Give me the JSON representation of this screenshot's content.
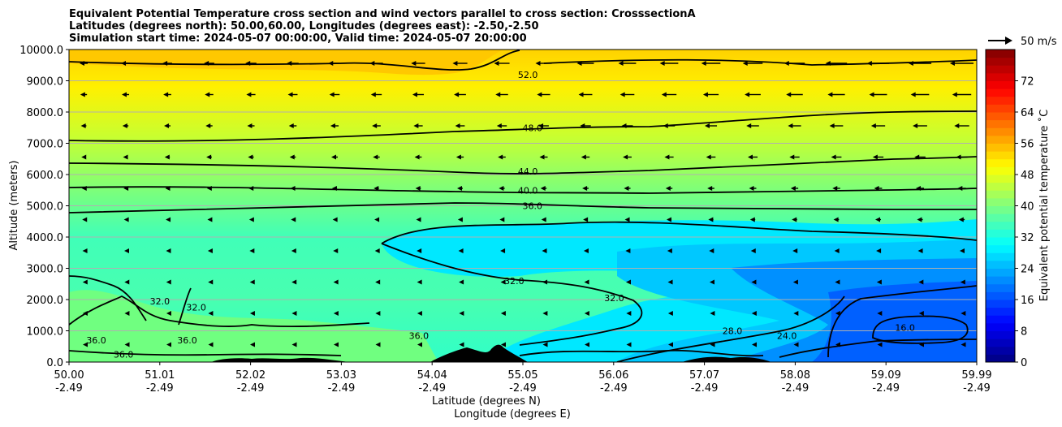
{
  "chart_data": {
    "type": "contourf",
    "title_lines": [
      "Equivalent Potential Temperature cross section and wind vectors parallel to cross section: CrosssectionA",
      "Latitudes (degrees north): 50.00,60.00, Longitudes (degrees east): -2.50,-2.50",
      "Simulation start time: 2024-05-07 00:00:00, Valid time: 2024-05-07 20:00:00"
    ],
    "xlabel_lat": "Latitude (degrees N)",
    "xlabel_lon": "Longitude (degrees E)",
    "ylabel": "Altitude (meters)",
    "x_ticks_lat": [
      "50.00",
      "51.01",
      "52.02",
      "53.03",
      "54.04",
      "55.05",
      "56.06",
      "57.07",
      "58.08",
      "59.09",
      "59.99"
    ],
    "x_ticks_lon": [
      "-2.49",
      "-2.49",
      "-2.49",
      "-2.49",
      "-2.49",
      "-2.49",
      "-2.49",
      "-2.49",
      "-2.49",
      "-2.49",
      "-2.49"
    ],
    "xlim": [
      50.0,
      59.99
    ],
    "y_ticks": [
      "0.0",
      "1000.0",
      "2000.0",
      "3000.0",
      "4000.0",
      "5000.0",
      "6000.0",
      "7000.0",
      "8000.0",
      "9000.0",
      "10000.0"
    ],
    "ylim": [
      0,
      10000
    ],
    "grid_y": true,
    "colorbar": {
      "label": "Equivalent potential temperature ˚C",
      "ticks": [
        "0",
        "8",
        "16",
        "24",
        "32",
        "40",
        "48",
        "56",
        "64",
        "72"
      ],
      "range": [
        0,
        80
      ],
      "colormap": "jet"
    },
    "quiver_key": "50 m/s",
    "contour_labels": [
      {
        "text": "52.0",
        "lat": 55.05,
        "alt": 9200
      },
      {
        "text": "48.0",
        "lat": 55.1,
        "alt": 7500
      },
      {
        "text": "44.0",
        "lat": 55.05,
        "alt": 6100
      },
      {
        "text": "40.0",
        "lat": 55.05,
        "alt": 5500
      },
      {
        "text": "36.0",
        "lat": 55.1,
        "alt": 5000
      },
      {
        "text": "32.0",
        "lat": 54.9,
        "alt": 2600
      },
      {
        "text": "32.0",
        "lat": 56.0,
        "alt": 2050
      },
      {
        "text": "32.0",
        "lat": 51.0,
        "alt": 1950
      },
      {
        "text": "32.0",
        "lat": 51.4,
        "alt": 1750
      },
      {
        "text": "36.0",
        "lat": 50.3,
        "alt": 700
      },
      {
        "text": "36.0",
        "lat": 51.3,
        "alt": 700
      },
      {
        "text": "36.0",
        "lat": 53.85,
        "alt": 850
      },
      {
        "text": "36.0",
        "lat": 50.6,
        "alt": 250
      },
      {
        "text": "28.0",
        "lat": 57.3,
        "alt": 1000
      },
      {
        "text": "24.0",
        "lat": 57.9,
        "alt": 850
      },
      {
        "text": "16.0",
        "lat": 59.2,
        "alt": 1100
      }
    ],
    "bands": [
      {
        "alt": 9800,
        "value": 53
      },
      {
        "alt": 9000,
        "value": 51
      },
      {
        "alt": 8000,
        "value": 48
      },
      {
        "alt": 7000,
        "value": 46
      },
      {
        "alt": 6000,
        "value": 43
      },
      {
        "alt": 5000,
        "value": 39
      },
      {
        "alt": 4000,
        "value": 36
      },
      {
        "alt": 3000,
        "value": 34
      },
      {
        "alt": 2000,
        "value": 34
      },
      {
        "alt": 1000,
        "value": 35
      },
      {
        "alt": 300,
        "value": 33
      }
    ],
    "low_region_values": [
      28,
      24,
      20,
      16
    ]
  }
}
